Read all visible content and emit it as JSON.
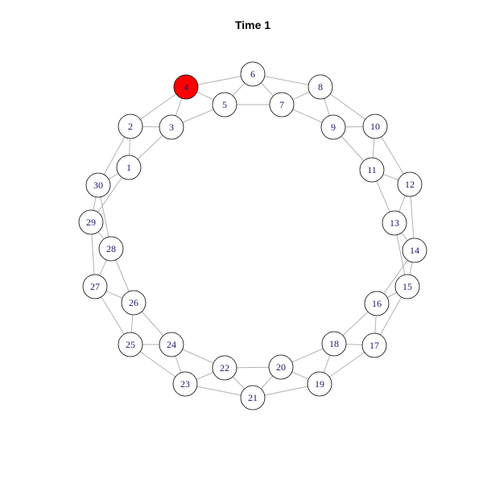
{
  "title": "Time 1",
  "colors": {
    "default_node_fill": "#ffffff",
    "highlight_node_fill": "#ff0000",
    "edge": "#b3b3b3",
    "label": "#1a1a6e"
  },
  "nodes": [
    {
      "id": "1",
      "label": "1"
    },
    {
      "id": "2",
      "label": "2"
    },
    {
      "id": "3",
      "label": "3"
    },
    {
      "id": "4",
      "label": "4",
      "highlight": true
    },
    {
      "id": "5",
      "label": "5"
    },
    {
      "id": "6",
      "label": "6"
    },
    {
      "id": "7",
      "label": "7"
    },
    {
      "id": "8",
      "label": "8"
    },
    {
      "id": "9",
      "label": "9"
    },
    {
      "id": "10",
      "label": "10"
    },
    {
      "id": "11",
      "label": "11"
    },
    {
      "id": "12",
      "label": "12"
    },
    {
      "id": "13",
      "label": "13"
    },
    {
      "id": "14",
      "label": "14"
    },
    {
      "id": "15",
      "label": "15"
    },
    {
      "id": "16",
      "label": "16"
    },
    {
      "id": "17",
      "label": "17"
    },
    {
      "id": "18",
      "label": "18"
    },
    {
      "id": "19",
      "label": "19"
    },
    {
      "id": "20",
      "label": "20"
    },
    {
      "id": "21",
      "label": "21"
    },
    {
      "id": "22",
      "label": "22"
    },
    {
      "id": "23",
      "label": "23"
    },
    {
      "id": "24",
      "label": "24"
    },
    {
      "id": "25",
      "label": "25"
    },
    {
      "id": "26",
      "label": "26"
    },
    {
      "id": "27",
      "label": "27"
    },
    {
      "id": "28",
      "label": "28"
    },
    {
      "id": "29",
      "label": "29"
    },
    {
      "id": "30",
      "label": "30"
    }
  ],
  "edges": [
    [
      "1",
      "2"
    ],
    [
      "1",
      "3"
    ],
    [
      "1",
      "29"
    ],
    [
      "1",
      "30"
    ],
    [
      "2",
      "3"
    ],
    [
      "2",
      "4"
    ],
    [
      "2",
      "30"
    ],
    [
      "3",
      "4"
    ],
    [
      "3",
      "5"
    ],
    [
      "4",
      "5"
    ],
    [
      "4",
      "6"
    ],
    [
      "5",
      "6"
    ],
    [
      "5",
      "7"
    ],
    [
      "6",
      "7"
    ],
    [
      "6",
      "8"
    ],
    [
      "7",
      "8"
    ],
    [
      "7",
      "9"
    ],
    [
      "8",
      "9"
    ],
    [
      "8",
      "10"
    ],
    [
      "9",
      "10"
    ],
    [
      "9",
      "11"
    ],
    [
      "10",
      "11"
    ],
    [
      "10",
      "12"
    ],
    [
      "11",
      "12"
    ],
    [
      "11",
      "13"
    ],
    [
      "12",
      "13"
    ],
    [
      "12",
      "14"
    ],
    [
      "13",
      "14"
    ],
    [
      "13",
      "15"
    ],
    [
      "14",
      "15"
    ],
    [
      "14",
      "16"
    ],
    [
      "15",
      "16"
    ],
    [
      "15",
      "17"
    ],
    [
      "16",
      "17"
    ],
    [
      "16",
      "18"
    ],
    [
      "17",
      "18"
    ],
    [
      "17",
      "19"
    ],
    [
      "18",
      "19"
    ],
    [
      "18",
      "20"
    ],
    [
      "19",
      "20"
    ],
    [
      "19",
      "21"
    ],
    [
      "20",
      "21"
    ],
    [
      "20",
      "22"
    ],
    [
      "21",
      "22"
    ],
    [
      "21",
      "23"
    ],
    [
      "22",
      "23"
    ],
    [
      "22",
      "24"
    ],
    [
      "23",
      "24"
    ],
    [
      "23",
      "25"
    ],
    [
      "24",
      "25"
    ],
    [
      "24",
      "26"
    ],
    [
      "25",
      "26"
    ],
    [
      "25",
      "27"
    ],
    [
      "26",
      "27"
    ],
    [
      "26",
      "28"
    ],
    [
      "27",
      "28"
    ],
    [
      "27",
      "29"
    ],
    [
      "28",
      "29"
    ],
    [
      "28",
      "30"
    ],
    [
      "29",
      "30"
    ]
  ]
}
